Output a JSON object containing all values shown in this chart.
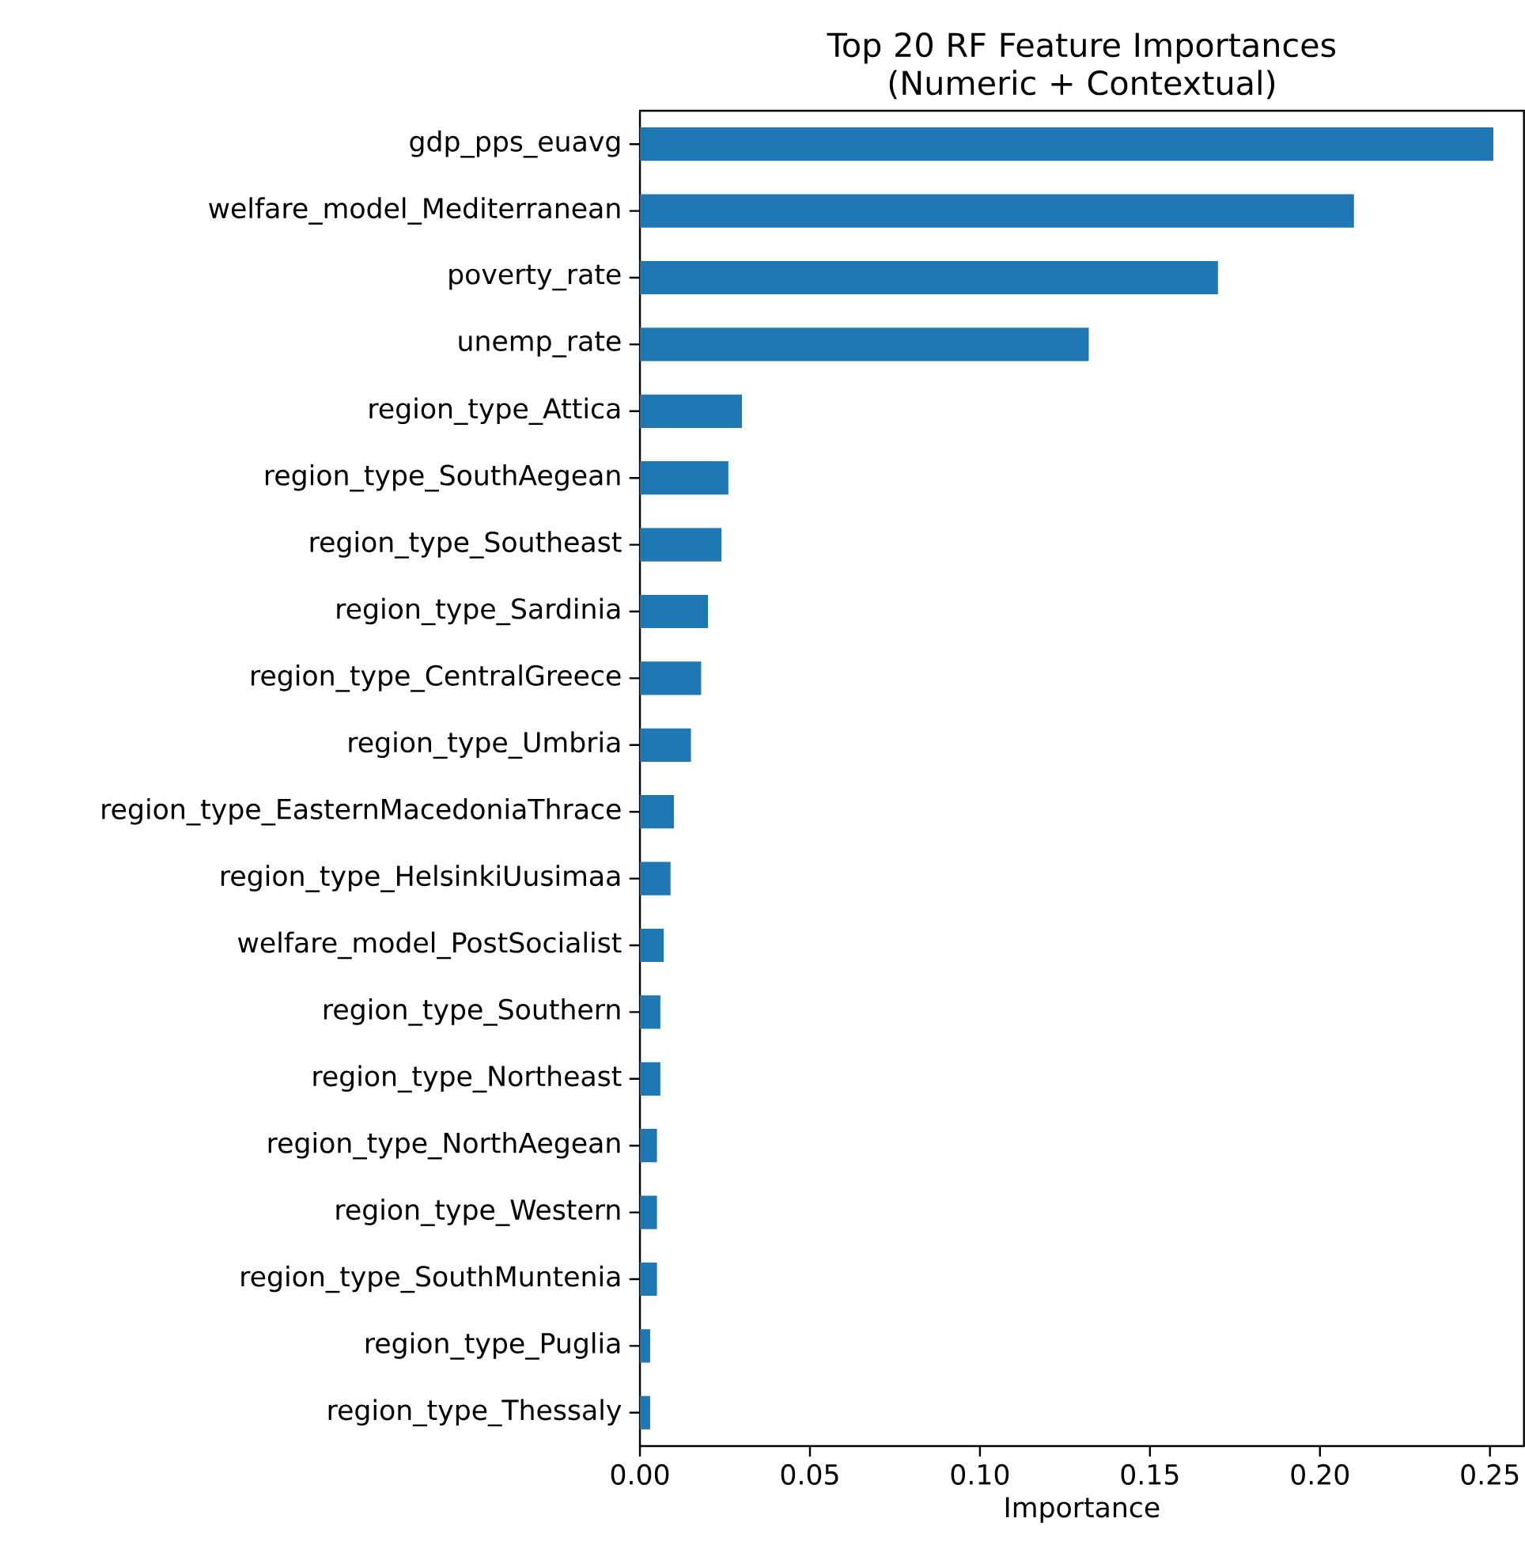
{
  "chart_data": {
    "type": "bar",
    "orientation": "horizontal",
    "title": "Top 20 RF Feature Importances (Numeric + Contextual)",
    "xlabel": "Importance",
    "categories": [
      "gdp_pps_euavg",
      "welfare_model_Mediterranean",
      "poverty_rate",
      "unemp_rate",
      "region_type_Attica",
      "region_type_SouthAegean",
      "region_type_Southeast",
      "region_type_Sardinia",
      "region_type_CentralGreece",
      "region_type_Umbria",
      "region_type_EasternMacedoniaThrace",
      "region_type_HelsinkiUusimaa",
      "welfare_model_PostSocialist",
      "region_type_Southern",
      "region_type_Northeast",
      "region_type_NorthAegean",
      "region_type_Western",
      "region_type_SouthMuntenia",
      "region_type_Puglia",
      "region_type_Thessaly"
    ],
    "values": [
      0.251,
      0.21,
      0.17,
      0.132,
      0.03,
      0.026,
      0.024,
      0.02,
      0.018,
      0.015,
      0.01,
      0.009,
      0.007,
      0.006,
      0.006,
      0.005,
      0.005,
      0.005,
      0.003,
      0.003
    ],
    "color": "#1f77b4",
    "xlim": [
      0,
      0.26
    ],
    "xticks": [
      {
        "value": 0,
        "label": "0.00"
      },
      {
        "value": 0.05,
        "label": "0.05"
      },
      {
        "value": 0.1,
        "label": "0.10"
      },
      {
        "value": 0.15,
        "label": "0.15"
      },
      {
        "value": 0.2,
        "label": "0.20"
      },
      {
        "value": 0.25,
        "label": "0.25"
      }
    ]
  }
}
